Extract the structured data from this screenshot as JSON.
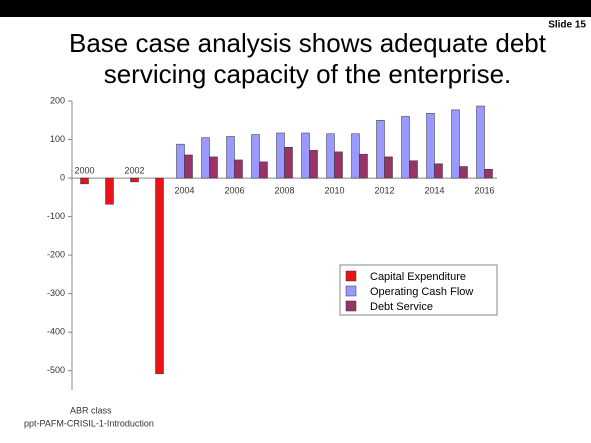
{
  "slide": {
    "number": "Slide 15",
    "footer": [
      "ABR class",
      "ppt-PAFM-CRISIL-1-Introduction"
    ]
  },
  "chart_data": {
    "type": "bar",
    "title": "Base case analysis shows adequate debt servicing capacity of the enterprise.",
    "categories": [
      "2000",
      null,
      "2002",
      null,
      "2004",
      null,
      "2006",
      null,
      "2008",
      null,
      "2010",
      null,
      "2012",
      null,
      "2014",
      null,
      "2016"
    ],
    "series": [
      {
        "name": "Capital Expenditure",
        "color": "#e8141a",
        "values": [
          -15,
          -68,
          -10,
          -508,
          null,
          null,
          null,
          null,
          null,
          null,
          null,
          null,
          null,
          null,
          null,
          null,
          null
        ]
      },
      {
        "name": "Operating Cash Flow",
        "color": "#9999ff",
        "values": [
          null,
          null,
          null,
          null,
          88,
          105,
          108,
          113,
          117,
          117,
          115,
          115,
          150,
          160,
          168,
          177,
          187
        ]
      },
      {
        "name": "Debt Service",
        "color": "#993366",
        "values": [
          null,
          null,
          null,
          null,
          60,
          55,
          47,
          42,
          80,
          72,
          68,
          62,
          55,
          45,
          37,
          30,
          23
        ]
      }
    ],
    "ylim": [
      -550,
      200
    ],
    "yticks": [
      -500,
      -400,
      -300,
      -200,
      -100,
      0,
      100,
      200
    ],
    "grid": false
  }
}
